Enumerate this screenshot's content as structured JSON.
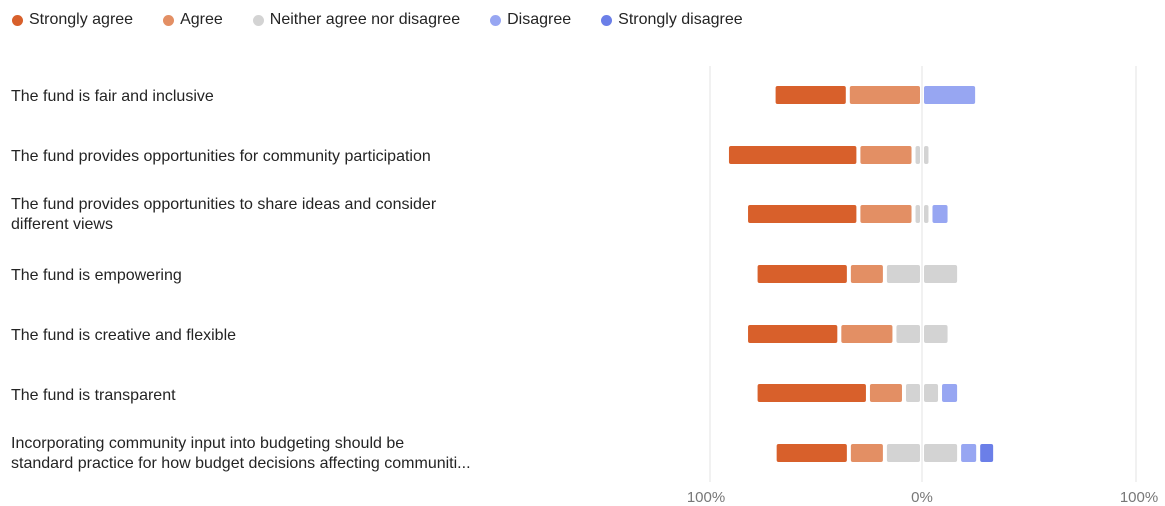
{
  "chart_data": {
    "type": "bar",
    "subtype": "diverging-stacked",
    "legend": [
      {
        "label": "Strongly agree",
        "color": "#d8602b"
      },
      {
        "label": "Agree",
        "color": "#e38f64"
      },
      {
        "label": "Neither agree nor disagree",
        "color": "#d3d3d3"
      },
      {
        "label": "Disagree",
        "color": "#97a6f2"
      },
      {
        "label": "Strongly disagree",
        "color": "#6b7fe8"
      }
    ],
    "legend_position": "top-left",
    "categories": [
      {
        "line1": "The fund is fair and inclusive",
        "line2": ""
      },
      {
        "line1": "The fund provides opportunities for community participation",
        "line2": ""
      },
      {
        "line1": "The fund provides opportunities to share ideas and consider",
        "line2": "different views"
      },
      {
        "line1": "The fund is empowering",
        "line2": ""
      },
      {
        "line1": "The fund is creative and flexible",
        "line2": ""
      },
      {
        "line1": "The fund is transparent",
        "line2": ""
      },
      {
        "line1": "Incorporating community input into budgeting should be",
        "line2": "standard practice for how budget decisions affecting communiti..."
      }
    ],
    "series": [
      {
        "name": "Strongly agree",
        "values": [
          35,
          62,
          53,
          44,
          44,
          53,
          35
        ]
      },
      {
        "name": "Agree",
        "values": [
          35,
          26,
          26,
          17,
          26,
          17,
          17
        ]
      },
      {
        "name": "Neither agree nor disagree",
        "values": [
          0,
          8,
          8,
          35,
          26,
          17,
          35
        ]
      },
      {
        "name": "Disagree",
        "values": [
          26,
          0,
          9,
          0,
          0,
          9,
          9
        ]
      },
      {
        "name": "Strongly disagree",
        "values": [
          0,
          0,
          0,
          0,
          0,
          0,
          8
        ]
      }
    ],
    "x_ticks": [
      "100%",
      "0%",
      "100%"
    ],
    "xlim": [
      -100,
      100
    ],
    "grid": true
  }
}
